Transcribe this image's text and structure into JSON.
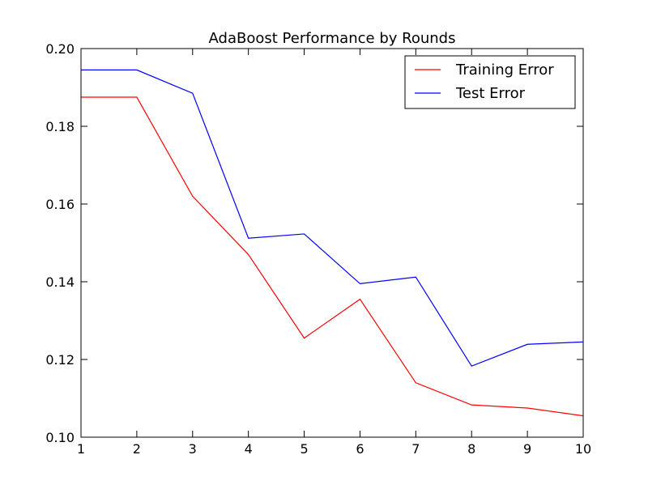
{
  "chart_data": {
    "type": "line",
    "title": "AdaBoost Performance by Rounds",
    "xlabel": "",
    "ylabel": "",
    "x": [
      1,
      2,
      3,
      4,
      5,
      6,
      7,
      8,
      9,
      10
    ],
    "xlim": [
      1,
      10
    ],
    "ylim": [
      0.1,
      0.2
    ],
    "xticks": [
      "1",
      "2",
      "3",
      "4",
      "5",
      "6",
      "7",
      "8",
      "9",
      "10"
    ],
    "yticks": [
      "0.10",
      "0.12",
      "0.14",
      "0.16",
      "0.18",
      "0.20"
    ],
    "grid": false,
    "legend_position": "top-right",
    "series": [
      {
        "name": "Training Error",
        "color": "#ff0000",
        "values": [
          0.1875,
          0.1875,
          0.162,
          0.147,
          0.1255,
          0.1355,
          0.114,
          0.1083,
          0.1075,
          0.1055
        ]
      },
      {
        "name": "Test Error",
        "color": "#0000ff",
        "values": [
          0.1945,
          0.1945,
          0.1885,
          0.1512,
          0.1523,
          0.1395,
          0.1412,
          0.1183,
          0.1239,
          0.1245
        ]
      }
    ]
  }
}
